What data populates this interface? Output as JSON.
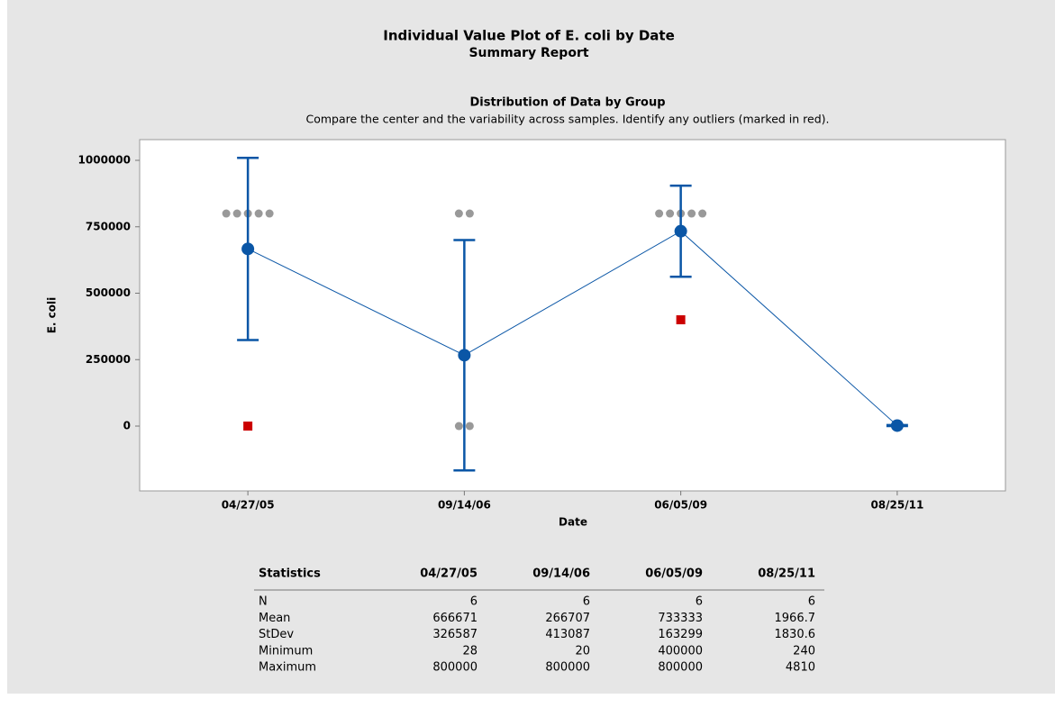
{
  "chart_data": {
    "type": "individual_value",
    "title": "Individual Value Plot of E. coli by Date",
    "subtitle": "Summary Report",
    "panel_title": "Distribution of Data by Group",
    "note": "Compare the center and the variability across samples. Identify any outliers (marked in red).",
    "xlabel": "Date",
    "ylabel": "E. coli",
    "categories": [
      "04/27/05",
      "09/14/06",
      "06/05/09",
      "08/25/11"
    ],
    "means": [
      666671,
      266707,
      733333,
      1966.7
    ],
    "errors": [
      342733,
      433510,
      171373,
      1921
    ],
    "points": [
      [
        800000,
        800000,
        800000,
        800000,
        800000
      ],
      [
        800000,
        800000,
        20,
        100
      ],
      [
        800000,
        800000,
        800000,
        800000,
        800000
      ],
      []
    ],
    "outliers": [
      [
        28
      ],
      [],
      [
        400000
      ],
      []
    ],
    "ylim": [
      -244000,
      1078000
    ],
    "yticks": [
      0,
      250000,
      500000,
      750000,
      1000000
    ],
    "mean_color": "#0a56a6",
    "point_color": "#999999",
    "outlier_color": "#cc0000"
  },
  "table": {
    "header": [
      "Statistics",
      "04/27/05",
      "09/14/06",
      "06/05/09",
      "08/25/11"
    ],
    "rows": [
      {
        "label": "N",
        "values": [
          6,
          6,
          6,
          6
        ]
      },
      {
        "label": "Mean",
        "values": [
          666671,
          266707,
          733333,
          1966.7
        ]
      },
      {
        "label": "StDev",
        "values": [
          326587,
          413087,
          163299,
          1830.6
        ]
      },
      {
        "label": "Minimum",
        "values": [
          28,
          20,
          400000,
          240
        ]
      },
      {
        "label": "Maximum",
        "values": [
          800000,
          800000,
          800000,
          4810
        ]
      }
    ]
  }
}
